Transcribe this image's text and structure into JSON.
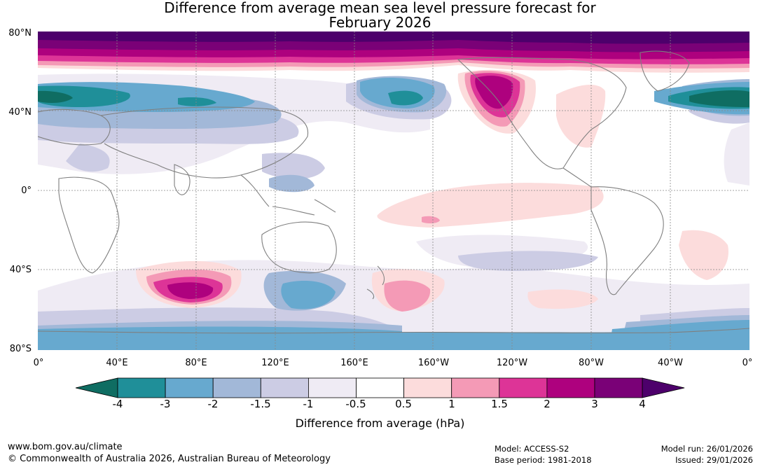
{
  "title_line1": "Difference from average mean sea level pressure forecast for",
  "title_line2": "February 2026",
  "latitude_labels": [
    "80°N",
    "40°N",
    "0°",
    "40°S",
    "80°S"
  ],
  "longitude_labels": [
    "0°",
    "40°E",
    "80°E",
    "120°E",
    "160°E",
    "160°W",
    "120°W",
    "80°W",
    "40°W",
    "0°"
  ],
  "colorbar": {
    "title": "Difference from average (hPa)",
    "tick_labels": [
      "-4",
      "-3",
      "-2",
      "-1.5",
      "-1",
      "-0.5",
      "0.5",
      "1",
      "1.5",
      "2",
      "3",
      "4"
    ],
    "colors": [
      "#0f6d62",
      "#1f8f99",
      "#67a9cf",
      "#a2b8d8",
      "#cccce4",
      "#efebf4",
      "#ffffff",
      "#fcdcdc",
      "#f49ab6",
      "#dd3497",
      "#ae017e",
      "#7a0177",
      "#4d006b"
    ]
  },
  "map_features": {
    "land_outline_color": "#7f7f7f",
    "gridline_color": "#888888"
  },
  "footer": {
    "website": "www.bom.gov.au/climate",
    "copyright": "© Commonwealth of Australia 2026, Australian Bureau of Meteorology",
    "model": "Model: ACCESS-S2",
    "base_period": "Base period: 1981-2018",
    "model_run": "Model run: 26/01/2026",
    "issued": "Issued: 29/01/2026"
  }
}
